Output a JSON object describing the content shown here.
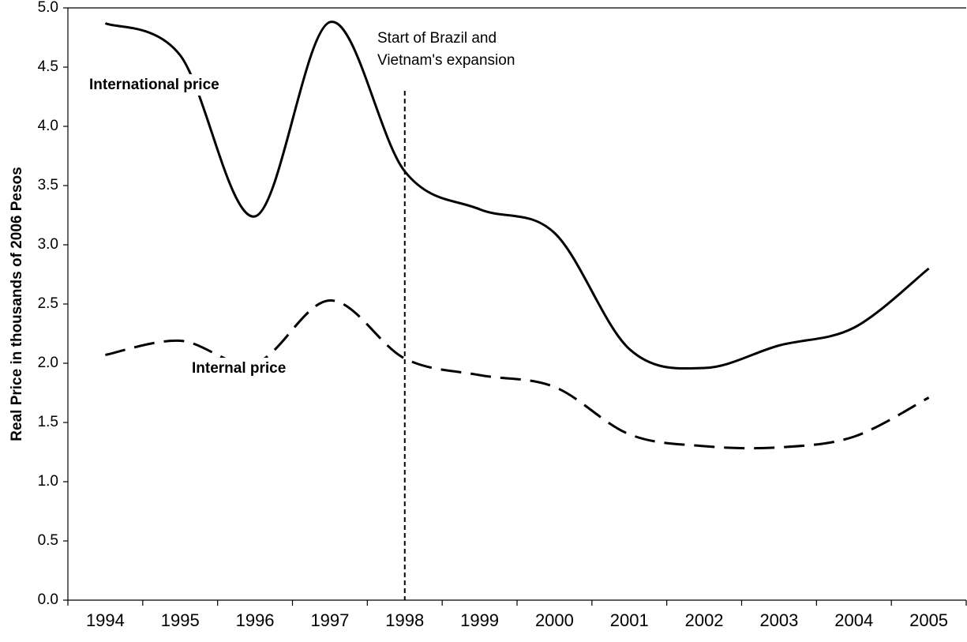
{
  "chart_data": {
    "type": "line",
    "y_label": "Real Price in thousands of 2006 Pesos",
    "categories": [
      "1994",
      "1995",
      "1996",
      "1997",
      "1998",
      "1999",
      "2000",
      "2001",
      "2002",
      "2003",
      "2004",
      "2005"
    ],
    "series": [
      {
        "name": "International price",
        "color": "#000000",
        "dash": "solid",
        "values": [
          4.87,
          4.6,
          3.24,
          4.88,
          3.62,
          3.3,
          3.1,
          2.12,
          1.96,
          2.15,
          2.3,
          2.8
        ]
      },
      {
        "name": "Internal price",
        "color": "#000000",
        "dash": "dashed",
        "values": [
          2.07,
          2.19,
          2.0,
          2.53,
          2.04,
          1.9,
          1.8,
          1.4,
          1.3,
          1.29,
          1.38,
          1.71
        ]
      }
    ],
    "annotation": [
      "Start of Brazil and",
      "Vietnam's expansion"
    ],
    "ylim": [
      0,
      5
    ],
    "yticks": [
      {
        "value": 0,
        "label": "0.0"
      },
      0.5,
      {
        "value": 1,
        "label": "1.0"
      },
      1.5,
      {
        "value": 2,
        "label": "2.0"
      },
      2.5,
      {
        "value": 3,
        "label": "3.0"
      },
      3.5,
      {
        "value": 4,
        "label": "4.0"
      },
      4.5,
      {
        "value": 5,
        "label": "5.0"
      }
    ],
    "grid": false
  }
}
